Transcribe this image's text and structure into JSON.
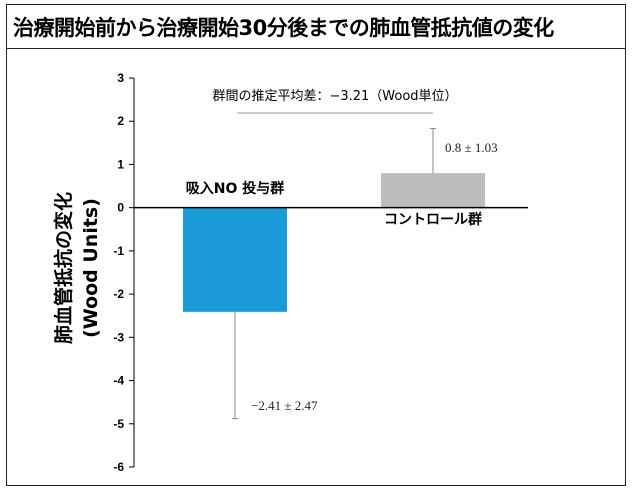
{
  "chart_data": {
    "type": "bar",
    "title": "治療開始前から治療開始30分後までの肺血管抵抗値の変化",
    "ylabel": "肺血管抵抗の変化",
    "ylabel_unit": "(Wood Units)",
    "ylim": [
      -6,
      3
    ],
    "yticks": [
      3,
      2,
      1,
      0,
      -1,
      -2,
      -3,
      -4,
      -5,
      -6
    ],
    "categories": [
      "吸入NO 投与群",
      "コントロール群"
    ],
    "values": [
      -2.41,
      0.8
    ],
    "errors": [
      2.47,
      1.03
    ],
    "data_labels": [
      "−2.41 ± 2.47",
      "0.8 ± 1.03"
    ],
    "colors": [
      "#1a9bd7",
      "#bdbdbd"
    ],
    "annotation": "群間の推定平均差：−3.21（Wood単位）",
    "grid": false,
    "legend": "none"
  }
}
